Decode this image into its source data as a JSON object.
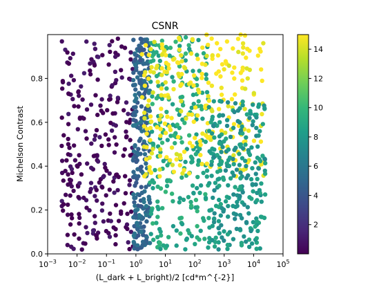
{
  "chart_data": {
    "type": "scatter",
    "title": "CSNR",
    "xlabel": "(L_dark + L_bright)/2 [cd*m^{-2}]",
    "ylabel": "Michelson Contrast",
    "x_scale": "log",
    "xlim": [
      0.001,
      100000
    ],
    "ylim": [
      0,
      1
    ],
    "x_ticks": [
      {
        "value": 0.001,
        "base": "10",
        "exp": "−3"
      },
      {
        "value": 0.01,
        "base": "10",
        "exp": "−2"
      },
      {
        "value": 0.1,
        "base": "10",
        "exp": "−1"
      },
      {
        "value": 1,
        "base": "10",
        "exp": "0"
      },
      {
        "value": 10,
        "base": "10",
        "exp": "1"
      },
      {
        "value": 100,
        "base": "10",
        "exp": "2"
      },
      {
        "value": 1000,
        "base": "10",
        "exp": "3"
      },
      {
        "value": 10000,
        "base": "10",
        "exp": "4"
      },
      {
        "value": 100000,
        "base": "10",
        "exp": "5"
      }
    ],
    "y_ticks": [
      "0.0",
      "0.2",
      "0.4",
      "0.6",
      "0.8"
    ],
    "y_tick_values": [
      0,
      0.2,
      0.4,
      0.6,
      0.8
    ],
    "colorbar": {
      "colormap": "viridis",
      "range": [
        0,
        15
      ],
      "ticks": [
        "2",
        "4",
        "6",
        "8",
        "10",
        "12",
        "14"
      ],
      "tick_values": [
        2,
        4,
        6,
        8,
        10,
        12,
        14
      ]
    },
    "grid": false,
    "regions": [
      {
        "x_range": [
          0.003,
          0.8
        ],
        "y_range": [
          0.02,
          0.99
        ],
        "c": 0.3
      },
      {
        "x_range": [
          0.8,
          3
        ],
        "y_range": [
          0.02,
          0.99
        ],
        "c": 5
      },
      {
        "x_range": [
          3,
          300
        ],
        "y_range": [
          0.02,
          0.99
        ],
        "c": 9
      },
      {
        "x_range": [
          1.5,
          25000
        ],
        "y_range": [
          0.35,
          1.0
        ],
        "c": 15
      },
      {
        "x_range": [
          300,
          25000
        ],
        "y_range": [
          0.02,
          0.7
        ],
        "c": 8
      }
    ]
  },
  "colors": {
    "viridis": [
      "#440154",
      "#482878",
      "#3e4a89",
      "#31688e",
      "#26828e",
      "#1f9e89",
      "#35b779",
      "#6ece58",
      "#b5de2b",
      "#fde725"
    ]
  }
}
